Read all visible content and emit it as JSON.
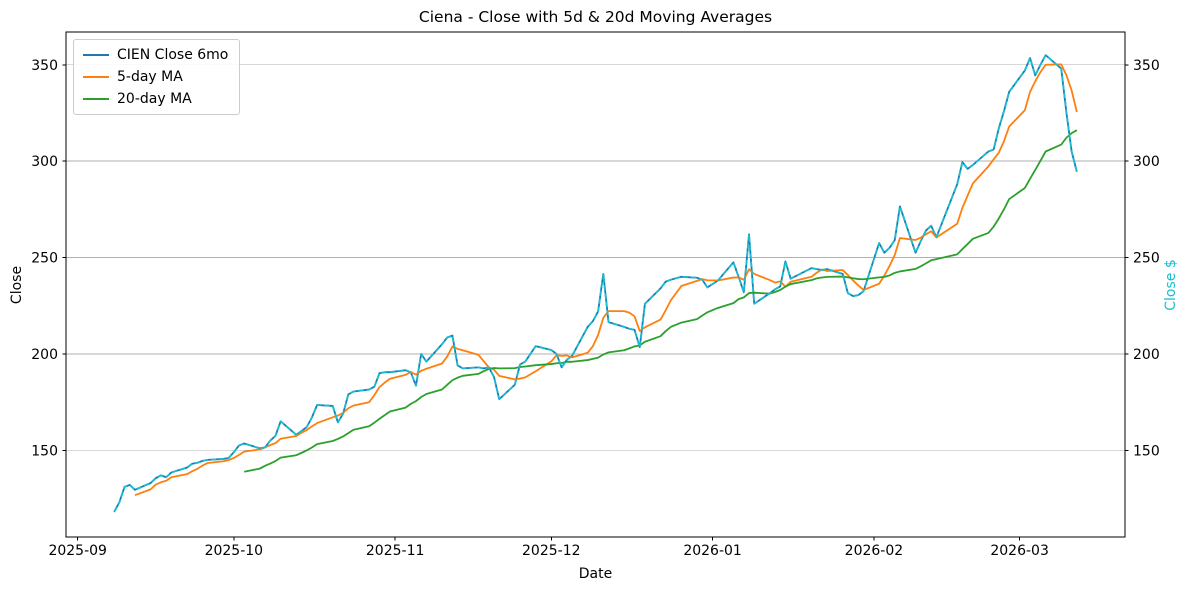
{
  "chart_data": {
    "type": "line",
    "title": "Ciena - Close with 5d & 20d Moving Averages",
    "xlabel": "Date",
    "ylabel_left": "Close",
    "ylabel_right": "Close $",
    "ylim": [
      105,
      367
    ],
    "yticks": [
      150,
      200,
      250,
      300,
      350
    ],
    "xticks": [
      {
        "date": "2025-09-01",
        "label": "2025-09"
      },
      {
        "date": "2025-10-01",
        "label": "2025-10"
      },
      {
        "date": "2025-11-01",
        "label": "2025-11"
      },
      {
        "date": "2025-12-01",
        "label": "2025-12"
      },
      {
        "date": "2026-01-01",
        "label": "2026-01"
      },
      {
        "date": "2026-02-01",
        "label": "2026-02"
      },
      {
        "date": "2026-03-01",
        "label": "2026-03"
      }
    ],
    "grid": "horizontal",
    "legend_position": "upper-left",
    "colors": {
      "close": "#1f77b4",
      "close_overlay": "#17becf",
      "ma5": "#ff7f0e",
      "ma20": "#2ca02c",
      "grid": "#b0b0b0",
      "spine": "#000000",
      "right_axis_label": "#17becf"
    },
    "series_labels": {
      "close": "CIEN Close 6mo",
      "ma5": "5-day MA",
      "ma20": "20-day MA"
    },
    "ma_windows": {
      "ma5": 5,
      "ma20": 20
    },
    "dates": [
      "2025-09-08",
      "2025-09-09",
      "2025-09-10",
      "2025-09-11",
      "2025-09-12",
      "2025-09-15",
      "2025-09-16",
      "2025-09-17",
      "2025-09-18",
      "2025-09-19",
      "2025-09-22",
      "2025-09-23",
      "2025-09-24",
      "2025-09-25",
      "2025-09-26",
      "2025-09-29",
      "2025-09-30",
      "2025-10-01",
      "2025-10-02",
      "2025-10-03",
      "2025-10-06",
      "2025-10-07",
      "2025-10-08",
      "2025-10-09",
      "2025-10-10",
      "2025-10-13",
      "2025-10-14",
      "2025-10-15",
      "2025-10-16",
      "2025-10-17",
      "2025-10-20",
      "2025-10-21",
      "2025-10-22",
      "2025-10-23",
      "2025-10-24",
      "2025-10-27",
      "2025-10-28",
      "2025-10-29",
      "2025-10-30",
      "2025-10-31",
      "2025-11-03",
      "2025-11-04",
      "2025-11-05",
      "2025-11-06",
      "2025-11-07",
      "2025-11-10",
      "2025-11-11",
      "2025-11-12",
      "2025-11-13",
      "2025-11-14",
      "2025-11-17",
      "2025-11-18",
      "2025-11-19",
      "2025-11-20",
      "2025-11-21",
      "2025-11-24",
      "2025-11-25",
      "2025-11-26",
      "2025-11-28",
      "2025-12-01",
      "2025-12-02",
      "2025-12-03",
      "2025-12-04",
      "2025-12-05",
      "2025-12-08",
      "2025-12-09",
      "2025-12-10",
      "2025-12-11",
      "2025-12-12",
      "2025-12-15",
      "2025-12-16",
      "2025-12-17",
      "2025-12-18",
      "2025-12-19",
      "2025-12-22",
      "2025-12-23",
      "2025-12-24",
      "2025-12-26",
      "2025-12-29",
      "2025-12-30",
      "2025-12-31",
      "2026-01-02",
      "2026-01-05",
      "2026-01-06",
      "2026-01-07",
      "2026-01-08",
      "2026-01-09",
      "2026-01-12",
      "2026-01-13",
      "2026-01-14",
      "2026-01-15",
      "2026-01-16",
      "2026-01-20",
      "2026-01-21",
      "2026-01-22",
      "2026-01-23",
      "2026-01-26",
      "2026-01-27",
      "2026-01-28",
      "2026-01-29",
      "2026-01-30",
      "2026-02-02",
      "2026-02-03",
      "2026-02-04",
      "2026-02-05",
      "2026-02-06",
      "2026-02-09",
      "2026-02-10",
      "2026-02-11",
      "2026-02-12",
      "2026-02-13",
      "2026-02-17",
      "2026-02-18",
      "2026-02-19",
      "2026-02-20",
      "2026-02-23",
      "2026-02-24",
      "2026-02-25",
      "2026-02-26",
      "2026-02-27",
      "2026-03-02",
      "2026-03-03",
      "2026-03-04",
      "2026-03-05",
      "2026-03-06",
      "2026-03-09",
      "2026-03-10",
      "2026-03-11",
      "2026-03-12"
    ],
    "close": [
      118,
      123,
      131,
      132,
      129.5,
      133,
      135.5,
      137,
      136,
      138.5,
      141,
      143,
      143.5,
      144.5,
      145,
      145.5,
      146,
      149,
      152.5,
      153.5,
      151,
      151.5,
      155,
      157.5,
      165,
      158,
      160,
      162,
      167,
      173.5,
      173,
      164.5,
      169,
      179,
      180.5,
      181.5,
      183,
      190,
      190.5,
      190.5,
      191.5,
      190.5,
      183.5,
      200,
      196,
      205,
      208.5,
      209.5,
      194,
      192.5,
      193,
      192.5,
      193,
      188,
      176.5,
      184,
      194.5,
      196,
      204,
      202,
      200,
      193,
      197,
      199,
      214,
      217,
      222,
      241.5,
      216.5,
      214,
      213,
      212.5,
      203.5,
      226,
      234,
      237.5,
      238.5,
      240,
      239.5,
      238.5,
      234.5,
      238,
      247.5,
      240,
      232,
      262,
      226,
      231.5,
      233.5,
      235,
      248,
      239,
      244.5,
      244,
      243.5,
      244,
      241.5,
      231.5,
      230,
      230.5,
      232.5,
      257.5,
      252.5,
      255,
      259,
      276.5,
      252.5,
      258.5,
      264,
      266.5,
      260.5,
      288,
      299.5,
      296,
      298,
      305,
      306,
      317,
      326,
      336,
      347,
      353.5,
      344.5,
      350,
      355,
      348,
      325,
      305,
      294.5
    ]
  }
}
